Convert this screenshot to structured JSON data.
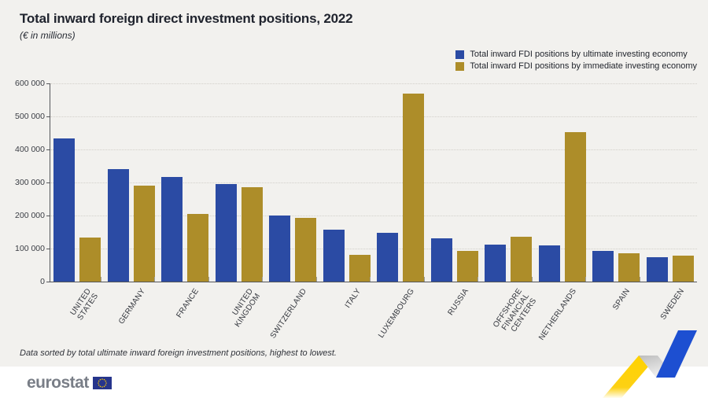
{
  "title": "Total inward foreign direct investment positions, 2022",
  "subtitle": "(€ in millions)",
  "footnote": "Data sorted by total ultimate inward foreign investment positions, highest to lowest.",
  "logo": {
    "text": "eurostat",
    "flag": "eu-flag-icon"
  },
  "colors": {
    "background": "#f2f1ee",
    "bar_ultimate": "#2b4ba4",
    "bar_immediate": "#ad8d29",
    "axis": "#55575b",
    "gridline": "#d2d0ca",
    "ribbon_yellow": "#ffd200",
    "ribbon_blue": "#1d4fd1",
    "eu_flag_blue": "#26358c"
  },
  "legend": [
    {
      "label": "Total inward FDI positions by ultimate investing economy",
      "color": "#2b4ba4"
    },
    {
      "label": "Total inward FDI positions by immediate investing economy",
      "color": "#ad8d29"
    }
  ],
  "chart_data": {
    "type": "bar",
    "title": "Total inward foreign direct investment positions, 2022",
    "subtitle": "(€ in millions)",
    "xlabel": "",
    "ylabel": "",
    "ylim": [
      0,
      600000
    ],
    "y_ticks": [
      "600 000",
      "500 000",
      "400 000",
      "300 000",
      "200 000",
      "100 000",
      "0"
    ],
    "grid": "horizontal dotted",
    "legend_position": "top-right",
    "categories": [
      "UNITED\nSTATES",
      "GERMANY",
      "FRANCE",
      "UNITED\nKINGDOM",
      "SWITZERLAND",
      "ITALY",
      "LUXEMBOURG",
      "RUSSIA",
      "OFFSHORE\nFINANCIAL\nCENTERS",
      "NETHERLANDS",
      "SPAIN",
      "SWEDEN"
    ],
    "series": [
      {
        "name": "Total inward FDI positions by ultimate investing economy",
        "color": "#2b4ba4",
        "values": [
          434000,
          340000,
          317000,
          295000,
          199000,
          158000,
          148000,
          131000,
          111000,
          109000,
          93000,
          74000
        ]
      },
      {
        "name": "Total inward FDI positions by immediate investing economy",
        "color": "#ad8d29",
        "values": [
          133000,
          291000,
          205000,
          285000,
          192000,
          81000,
          570000,
          93000,
          135000,
          452000,
          86000,
          79000
        ]
      }
    ]
  }
}
